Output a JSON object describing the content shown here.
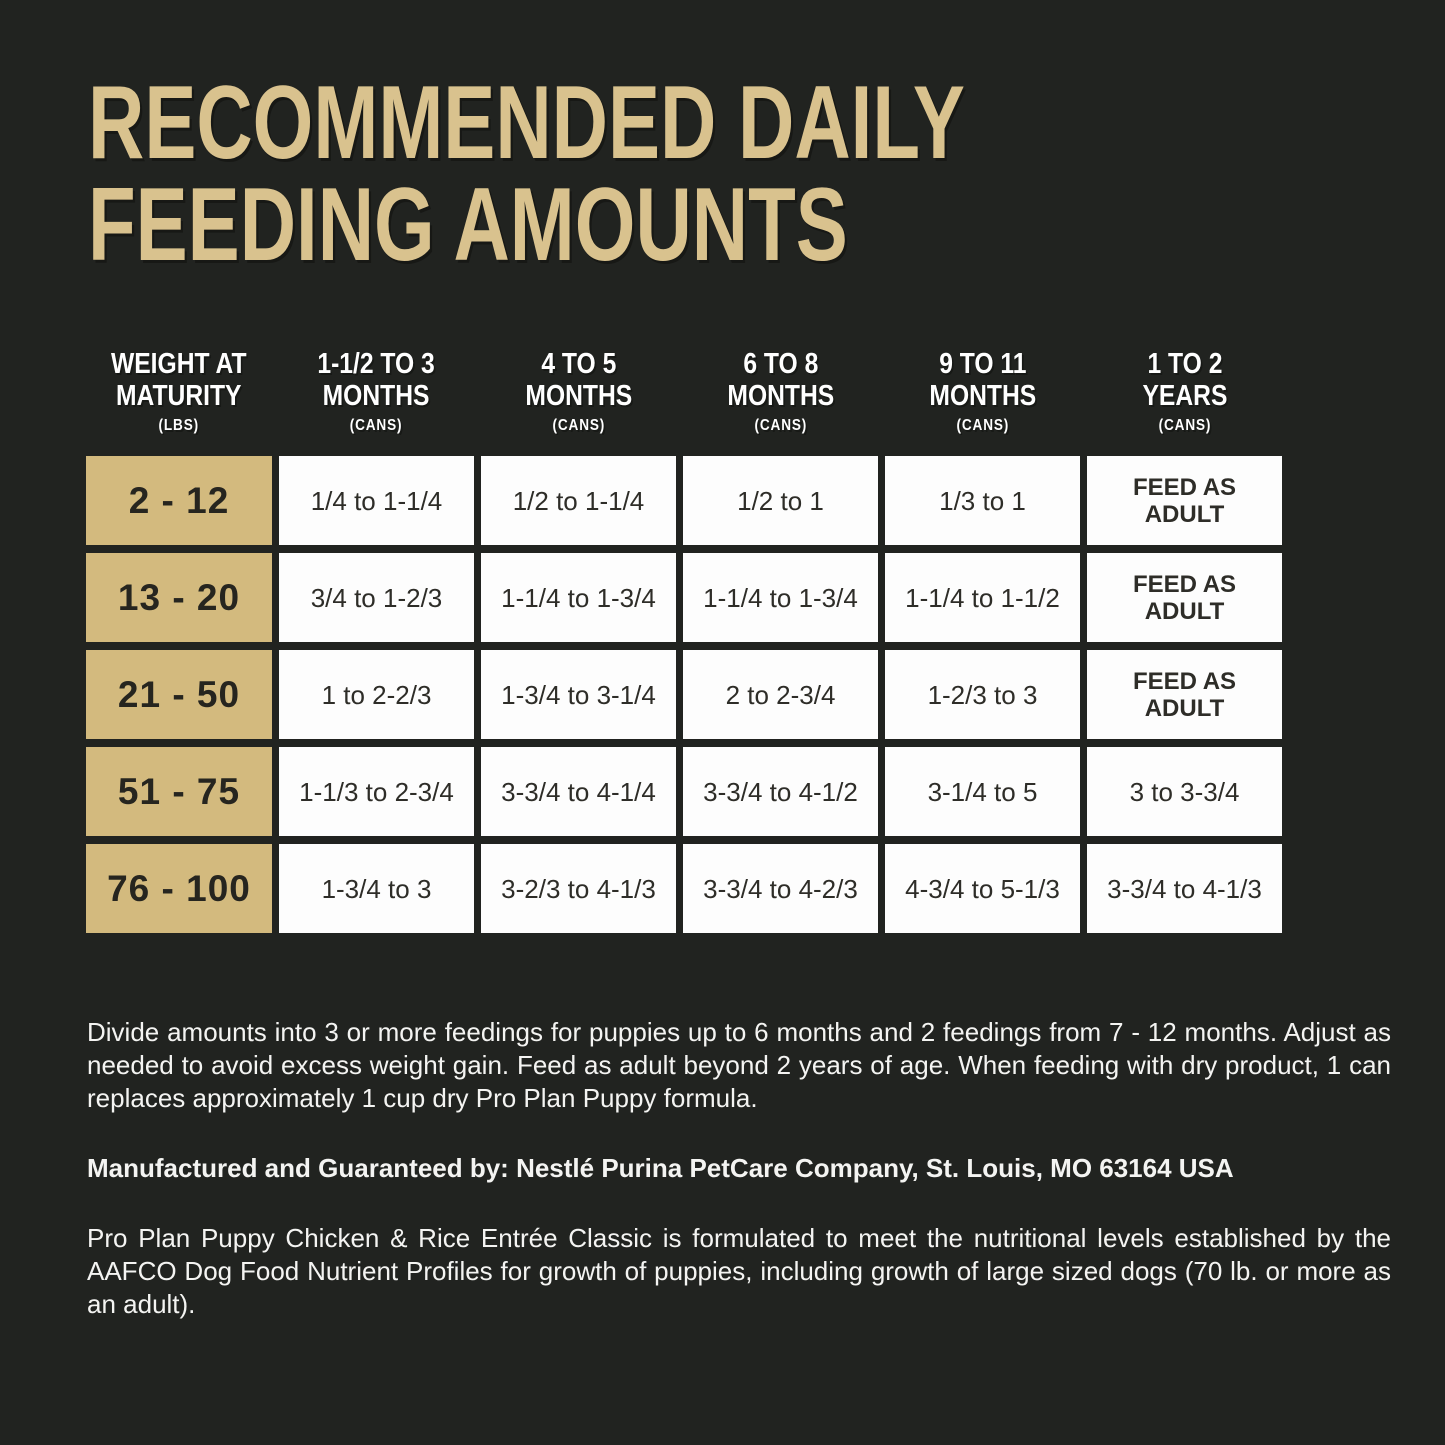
{
  "colors": {
    "background": "#212320",
    "title_gold": "#d9c28e",
    "accent_cell_tan": "#d3ba7e",
    "white_cell": "#fdfdfd",
    "cell_text": "#2e2d28",
    "body_text": "#f4f4f2",
    "header_text": "#ffffff"
  },
  "title": {
    "line1": "RECOMMENDED DAILY",
    "line2": "FEEDING AMOUNTS"
  },
  "table": {
    "columns": [
      {
        "line1": "WEIGHT AT",
        "line2": "MATURITY",
        "unit": "(LBS)"
      },
      {
        "line1": "1-1/2 TO 3",
        "line2": "MONTHS",
        "unit": "(CANS)"
      },
      {
        "line1": "4 TO 5",
        "line2": "MONTHS",
        "unit": "(CANS)"
      },
      {
        "line1": "6 TO 8",
        "line2": "MONTHS",
        "unit": "(CANS)"
      },
      {
        "line1": "9 TO 11",
        "line2": "MONTHS",
        "unit": "(CANS)"
      },
      {
        "line1": "1 TO 2",
        "line2": "YEARS",
        "unit": "(CANS)"
      }
    ],
    "rows": [
      {
        "weight": "2 - 12",
        "values": [
          "1/4 to 1-1/4",
          "1/2 to 1-1/4",
          "1/2 to 1",
          "1/3 to 1",
          "FEED AS ADULT"
        ]
      },
      {
        "weight": "13 - 20",
        "values": [
          "3/4 to 1-2/3",
          "1-1/4 to 1-3/4",
          "1-1/4 to 1-3/4",
          "1-1/4 to 1-1/2",
          "FEED AS ADULT"
        ]
      },
      {
        "weight": "21 - 50",
        "values": [
          "1 to 2-2/3",
          "1-3/4 to 3-1/4",
          "2 to 2-3/4",
          "1-2/3 to 3",
          "FEED AS ADULT"
        ]
      },
      {
        "weight": "51 - 75",
        "values": [
          "1-1/3 to 2-3/4",
          "3-3/4 to 4-1/4",
          "3-3/4 to 4-1/2",
          "3-1/4 to 5",
          "3 to 3-3/4"
        ]
      },
      {
        "weight": "76 - 100",
        "values": [
          "1-3/4 to 3",
          "3-2/3 to 4-1/3",
          "3-3/4 to 4-2/3",
          "4-3/4 to 5-1/3",
          "3-3/4 to 4-1/3"
        ]
      }
    ]
  },
  "notes": {
    "feeding_note": "Divide amounts into 3 or more feedings for puppies up to 6 months and 2 feedings from 7 - 12 months. Adjust as needed to avoid excess weight gain. Feed as adult beyond 2 years of age. When feeding with dry product, 1 can replaces approximately 1 cup dry Pro Plan Puppy formula.",
    "manufacturer": "Manufactured and Guaranteed by: Nestlé Purina PetCare Company, St. Louis, MO 63164 USA",
    "aafco_statement": "Pro Plan Puppy Chicken & Rice Entrée Classic is formulated to meet the nutritional levels established by the AAFCO Dog Food Nutrient Profiles for growth of puppies, including growth of large sized dogs (70 lb. or more as an adult)."
  }
}
